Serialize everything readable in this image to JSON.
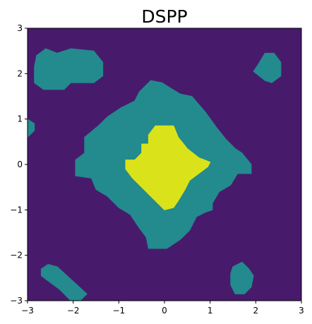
{
  "chart_data": {
    "type": "contourf",
    "title": "DSPP",
    "xlabel": "",
    "ylabel": "",
    "xlim": [
      -3,
      3
    ],
    "ylim": [
      -3,
      3
    ],
    "x_ticks": [
      -3,
      -2,
      -1,
      0,
      1,
      2,
      3
    ],
    "y_ticks": [
      -3,
      -2,
      -1,
      0,
      1,
      2,
      3
    ],
    "x_tick_labels": [
      "−3",
      "−2",
      "−1",
      "0",
      "1",
      "2",
      "3"
    ],
    "y_tick_labels": [
      "−3",
      "−2",
      "−1",
      "0",
      "1",
      "2",
      "3"
    ],
    "grid": false,
    "colormap": "viridis",
    "levels": [
      {
        "level": 0,
        "color": "#481a6c"
      },
      {
        "level": 1,
        "color": "#238a8d"
      },
      {
        "level": 2,
        "color": "#dae319"
      }
    ],
    "regions": [
      {
        "level": 1,
        "polygon": [
          [
            -2.8,
            2.4
          ],
          [
            -2.6,
            2.55
          ],
          [
            -2.35,
            2.45
          ],
          [
            -2.05,
            2.55
          ],
          [
            -1.55,
            2.5
          ],
          [
            -1.35,
            2.25
          ],
          [
            -1.35,
            1.95
          ],
          [
            -1.55,
            1.8
          ],
          [
            -2.05,
            1.8
          ],
          [
            -2.2,
            1.65
          ],
          [
            -2.65,
            1.65
          ],
          [
            -2.85,
            1.8
          ],
          [
            -2.85,
            2.15
          ]
        ]
      },
      {
        "level": 1,
        "polygon": [
          [
            2.05,
            2.2
          ],
          [
            2.2,
            2.45
          ],
          [
            2.4,
            2.45
          ],
          [
            2.55,
            2.25
          ],
          [
            2.55,
            1.95
          ],
          [
            2.35,
            1.8
          ],
          [
            2.2,
            1.85
          ],
          [
            1.95,
            2.05
          ]
        ]
      },
      {
        "level": 1,
        "polygon": [
          [
            -3,
            1.0
          ],
          [
            -2.85,
            0.9
          ],
          [
            -2.85,
            0.75
          ],
          [
            -3,
            0.6
          ]
        ]
      },
      {
        "level": 1,
        "polygon": [
          [
            -0.55,
            1.6
          ],
          [
            -0.3,
            1.85
          ],
          [
            -0.05,
            1.8
          ],
          [
            0.1,
            1.7
          ],
          [
            0.35,
            1.55
          ],
          [
            0.6,
            1.5
          ],
          [
            0.9,
            1.15
          ],
          [
            1.15,
            0.8
          ],
          [
            1.35,
            0.55
          ],
          [
            1.55,
            0.35
          ],
          [
            1.7,
            0.25
          ],
          [
            1.9,
            0.0
          ],
          [
            1.9,
            -0.2
          ],
          [
            1.6,
            -0.2
          ],
          [
            1.45,
            -0.45
          ],
          [
            1.2,
            -0.6
          ],
          [
            1.05,
            -0.85
          ],
          [
            1.05,
            -1.0
          ],
          [
            0.9,
            -1.05
          ],
          [
            0.7,
            -1.15
          ],
          [
            0.55,
            -1.45
          ],
          [
            0.35,
            -1.65
          ],
          [
            0.2,
            -1.75
          ],
          [
            0.05,
            -1.85
          ],
          [
            -0.35,
            -1.85
          ],
          [
            -0.4,
            -1.6
          ],
          [
            -0.55,
            -1.4
          ],
          [
            -0.75,
            -1.1
          ],
          [
            -1.0,
            -0.95
          ],
          [
            -1.25,
            -0.7
          ],
          [
            -1.5,
            -0.55
          ],
          [
            -1.6,
            -0.3
          ],
          [
            -1.95,
            -0.25
          ],
          [
            -1.95,
            0.1
          ],
          [
            -1.75,
            0.25
          ],
          [
            -1.75,
            0.6
          ],
          [
            -1.45,
            0.85
          ],
          [
            -1.25,
            1.05
          ],
          [
            -0.95,
            1.25
          ],
          [
            -0.65,
            1.4
          ]
        ]
      },
      {
        "level": 1,
        "polygon": [
          [
            -2.7,
            -2.3
          ],
          [
            -2.55,
            -2.2
          ],
          [
            -2.35,
            -2.25
          ],
          [
            -1.7,
            -2.85
          ],
          [
            -1.85,
            -3.0
          ],
          [
            -2.05,
            -3.0
          ],
          [
            -2.3,
            -2.75
          ],
          [
            -2.5,
            -2.6
          ],
          [
            -2.7,
            -2.45
          ]
        ]
      },
      {
        "level": 1,
        "polygon": [
          [
            1.5,
            -2.25
          ],
          [
            1.7,
            -2.15
          ],
          [
            1.85,
            -2.3
          ],
          [
            1.95,
            -2.45
          ],
          [
            1.9,
            -2.7
          ],
          [
            1.75,
            -2.85
          ],
          [
            1.55,
            -2.85
          ],
          [
            1.45,
            -2.65
          ],
          [
            1.45,
            -2.4
          ]
        ]
      },
      {
        "level": 2,
        "polygon": [
          [
            -0.85,
            0.1
          ],
          [
            -0.65,
            0.1
          ],
          [
            -0.5,
            0.25
          ],
          [
            -0.5,
            0.45
          ],
          [
            -0.35,
            0.45
          ],
          [
            -0.35,
            0.65
          ],
          [
            -0.2,
            0.85
          ],
          [
            0.2,
            0.85
          ],
          [
            0.3,
            0.6
          ],
          [
            0.5,
            0.35
          ],
          [
            0.75,
            0.15
          ],
          [
            1.0,
            0.05
          ],
          [
            0.95,
            -0.05
          ],
          [
            0.55,
            -0.35
          ],
          [
            0.45,
            -0.55
          ],
          [
            0.3,
            -0.8
          ],
          [
            0.2,
            -0.95
          ],
          [
            0.0,
            -1.0
          ],
          [
            -0.2,
            -0.8
          ],
          [
            -0.5,
            -0.5
          ],
          [
            -0.7,
            -0.3
          ],
          [
            -0.85,
            -0.1
          ]
        ]
      }
    ]
  }
}
